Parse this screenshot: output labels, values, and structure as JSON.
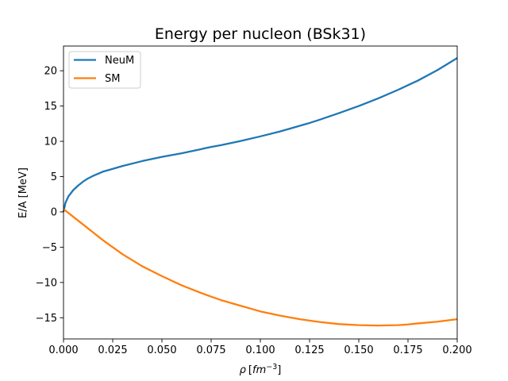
{
  "chart_data": {
    "type": "line",
    "title": "Energy per nucleon (BSk31)",
    "xlabel_symbol": "ρ",
    "xlabel_unit_base": "fm",
    "xlabel_unit_exp": "−3",
    "ylabel": "E/A [MeV]",
    "xlim": [
      0.0,
      0.2
    ],
    "ylim": [
      -18,
      23.5
    ],
    "x_ticks": [
      0.0,
      0.025,
      0.05,
      0.075,
      0.1,
      0.125,
      0.15,
      0.175,
      0.2
    ],
    "x_tick_labels": [
      "0.000",
      "0.025",
      "0.050",
      "0.075",
      "0.100",
      "0.125",
      "0.150",
      "0.175",
      "0.200"
    ],
    "y_ticks": [
      -15,
      -10,
      -5,
      0,
      5,
      10,
      15,
      20
    ],
    "y_tick_labels": [
      "−15",
      "−10",
      "−5",
      "0",
      "5",
      "10",
      "15",
      "20"
    ],
    "grid": false,
    "legend_position": "top-left",
    "series": [
      {
        "name": "NeuM",
        "color": "#1f77b4",
        "x": [
          0.0,
          0.001,
          0.0025,
          0.005,
          0.0075,
          0.01,
          0.0125,
          0.015,
          0.02,
          0.025,
          0.03,
          0.04,
          0.05,
          0.06,
          0.07,
          0.075,
          0.08,
          0.09,
          0.1,
          0.11,
          0.12,
          0.125,
          0.13,
          0.14,
          0.15,
          0.16,
          0.17,
          0.175,
          0.18,
          0.19,
          0.2
        ],
        "y": [
          0.0,
          1.3,
          2.2,
          3.1,
          3.75,
          4.3,
          4.75,
          5.1,
          5.7,
          6.1,
          6.5,
          7.2,
          7.8,
          8.3,
          8.9,
          9.2,
          9.45,
          10.05,
          10.7,
          11.4,
          12.2,
          12.6,
          13.05,
          14.0,
          15.0,
          16.1,
          17.3,
          17.95,
          18.6,
          20.1,
          21.8
        ]
      },
      {
        "name": "SM",
        "color": "#ff7f0e",
        "x": [
          0.0,
          0.005,
          0.01,
          0.015,
          0.02,
          0.025,
          0.03,
          0.04,
          0.05,
          0.06,
          0.07,
          0.075,
          0.08,
          0.09,
          0.1,
          0.11,
          0.12,
          0.125,
          0.13,
          0.14,
          0.15,
          0.16,
          0.17,
          0.175,
          0.18,
          0.19,
          0.2
        ],
        "y": [
          0.4,
          -0.7,
          -1.8,
          -2.9,
          -4.0,
          -5.0,
          -6.0,
          -7.7,
          -9.1,
          -10.4,
          -11.5,
          -12.0,
          -12.5,
          -13.3,
          -14.1,
          -14.7,
          -15.2,
          -15.4,
          -15.6,
          -15.9,
          -16.05,
          -16.1,
          -16.05,
          -15.95,
          -15.8,
          -15.55,
          -15.2
        ]
      }
    ]
  }
}
